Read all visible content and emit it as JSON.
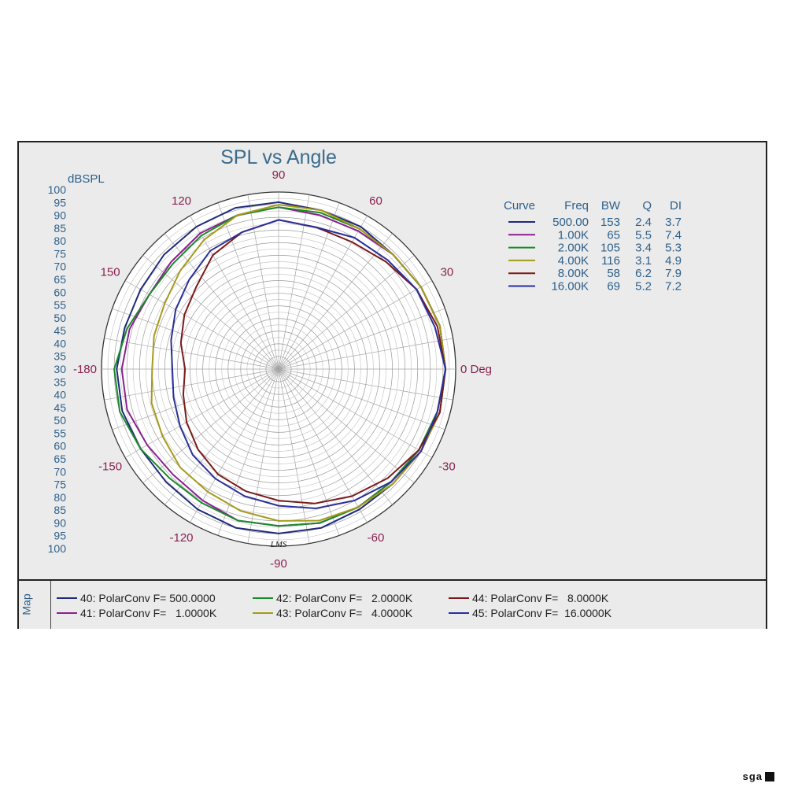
{
  "chart_data": {
    "type": "polar",
    "title": "SPL vs Angle",
    "radial_unit": "dBSPL",
    "radial_ticks": [
      "100",
      "95",
      "90",
      "85",
      "80",
      "75",
      "70",
      "65",
      "60",
      "55",
      "50",
      "45",
      "40",
      "35",
      "30",
      "35",
      "40",
      "45",
      "50",
      "55",
      "60",
      "65",
      "70",
      "75",
      "80",
      "85",
      "90",
      "95",
      "100"
    ],
    "angle_labels": [
      {
        "angle": 0,
        "text": "0 Deg"
      },
      {
        "angle": 30,
        "text": "30"
      },
      {
        "angle": 60,
        "text": "60"
      },
      {
        "angle": 90,
        "text": "90"
      },
      {
        "angle": 120,
        "text": "120"
      },
      {
        "angle": 150,
        "text": "150"
      },
      {
        "angle": 180,
        "text": "-180"
      },
      {
        "angle": -150,
        "text": "-150"
      },
      {
        "angle": -120,
        "text": "-120"
      },
      {
        "angle": -90,
        "text": "-90"
      },
      {
        "angle": -60,
        "text": "-60"
      },
      {
        "angle": -30,
        "text": "-30"
      }
    ],
    "rlim": [
      30,
      100
    ],
    "grid": true,
    "table_headers": [
      "Curve",
      "Freq",
      "BW",
      "Q",
      "DI"
    ],
    "series": [
      {
        "name": "500.00",
        "bw": "153",
        "q": "2.4",
        "di": "3.7",
        "color": "#1f2a7a",
        "angles": [
          0,
          15,
          30,
          45,
          60,
          75,
          90,
          105,
          120,
          135,
          150,
          165,
          180,
          195,
          210,
          225,
          240,
          255,
          270,
          285,
          300,
          315,
          330,
          345
        ],
        "values": [
          96,
          96,
          95,
          94,
          95,
          95,
          96,
          96,
          95,
          94,
          93,
          93,
          94,
          94,
          93,
          93,
          94,
          95,
          95,
          95,
          94,
          94,
          95,
          96
        ]
      },
      {
        "name": "1.00K",
        "bw": "65",
        "q": "5.5",
        "di": "7.4",
        "color": "#8a1f8f",
        "angles": [
          0,
          15,
          30,
          45,
          60,
          75,
          90,
          105,
          120,
          135,
          150,
          165,
          180,
          195,
          210,
          225,
          240,
          255,
          270,
          285,
          300,
          315,
          330,
          345
        ],
        "values": [
          96,
          96,
          95,
          94,
          93,
          93,
          94,
          93,
          92,
          90,
          89,
          91,
          92,
          92,
          90,
          89,
          90,
          92,
          92,
          93,
          93,
          93,
          94,
          95
        ]
      },
      {
        "name": "2.00K",
        "bw": "105",
        "q": "3.4",
        "di": "5.3",
        "color": "#1a8a2a",
        "angles": [
          0,
          15,
          30,
          45,
          60,
          75,
          90,
          105,
          120,
          135,
          150,
          165,
          180,
          195,
          210,
          225,
          240,
          255,
          270,
          285,
          300,
          315,
          330,
          345
        ],
        "values": [
          96,
          96,
          95,
          94,
          94,
          94,
          94,
          93,
          91,
          89,
          89,
          92,
          95,
          95,
          93,
          91,
          91,
          92,
          92,
          93,
          93,
          93,
          94,
          95
        ]
      },
      {
        "name": "4.00K",
        "bw": "116",
        "q": "3.1",
        "di": "4.9",
        "color": "#a59a1a",
        "angles": [
          0,
          15,
          30,
          45,
          60,
          75,
          90,
          105,
          120,
          135,
          150,
          165,
          180,
          195,
          210,
          225,
          240,
          255,
          270,
          285,
          300,
          315,
          330,
          345
        ],
        "values": [
          96,
          96,
          95,
          94,
          94,
          95,
          95,
          93,
          89,
          85,
          82,
          81,
          80,
          82,
          83,
          85,
          86,
          88,
          90,
          92,
          93,
          94,
          95,
          96
        ]
      },
      {
        "name": "8.00K",
        "bw": "58",
        "q": "6.2",
        "di": "7.9",
        "color": "#7a1a1a",
        "angles": [
          0,
          15,
          30,
          45,
          60,
          75,
          90,
          105,
          120,
          135,
          150,
          165,
          180,
          195,
          210,
          225,
          240,
          255,
          270,
          285,
          300,
          315,
          330,
          345
        ],
        "values": [
          96,
          95,
          93,
          90,
          88,
          88,
          89,
          86,
          82,
          76,
          73,
          70,
          67,
          69,
          72,
          75,
          78,
          80,
          82,
          85,
          88,
          91,
          94,
          96
        ]
      },
      {
        "name": "16.00K",
        "bw": "69",
        "q": "5.2",
        "di": "7.2",
        "color": "#2a2f9a",
        "angles": [
          0,
          15,
          30,
          45,
          60,
          75,
          90,
          105,
          120,
          135,
          150,
          165,
          180,
          195,
          210,
          225,
          240,
          255,
          270,
          285,
          300,
          315,
          330,
          345
        ],
        "values": [
          96,
          94,
          93,
          91,
          90,
          88,
          89,
          86,
          84,
          80,
          77,
          74,
          72,
          73,
          75,
          78,
          80,
          82,
          84,
          87,
          90,
          93,
          95,
          95
        ]
      }
    ]
  },
  "legend_tab": "Map",
  "legend_items": [
    {
      "id": "40",
      "text": "40: PolarConv F= 500.0000",
      "color": "#1f2a7a"
    },
    {
      "id": "41",
      "text": "41: PolarConv F=   1.0000K",
      "color": "#8a1f8f"
    },
    {
      "id": "42",
      "text": "42: PolarConv F=   2.0000K",
      "color": "#1a8a2a"
    },
    {
      "id": "43",
      "text": "43: PolarConv F=   4.0000K",
      "color": "#a59a1a"
    },
    {
      "id": "44",
      "text": "44: PolarConv F=   8.0000K",
      "color": "#7a1a1a"
    },
    {
      "id": "45",
      "text": "45: PolarConv F=  16.0000K",
      "color": "#2a2f9a"
    }
  ],
  "signature": "LMS",
  "brand": "sga"
}
